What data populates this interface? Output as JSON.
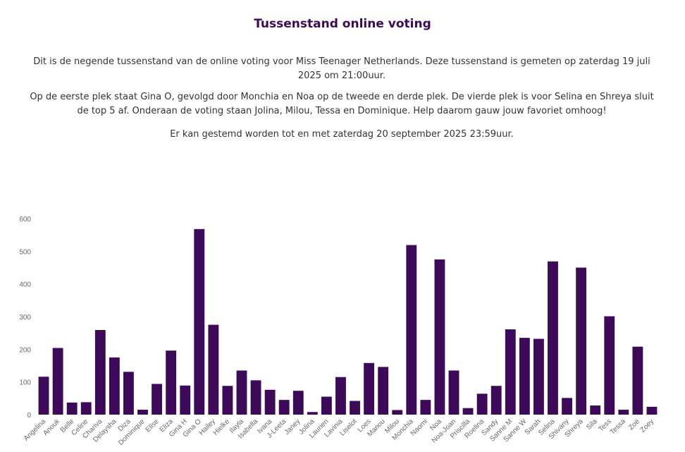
{
  "page": {
    "title": "Tussenstand online voting",
    "paragraphs": [
      "Dit is de negende tussenstand van de online voting voor Miss Teenager Netherlands. Deze tussenstand is gemeten op zaterdag 19 juli 2025 om 21:00uur.",
      "Op de eerste plek staat Gina O, gevolgd door Monchia en Noa op de tweede en derde plek. De vierde plek is voor Selina en Shreya sluit de top 5 af. Onderaan de voting staan Jolina, Milou, Tessa en Dominique. Help daarom gauw jouw favoriet omhoog!",
      "Er kan gestemd worden tot en met zaterdag 20 september 2025 23:59uur."
    ]
  },
  "colors": {
    "bar": "#3d0a5a",
    "title": "#3d0a5a"
  },
  "chart_data": {
    "type": "bar",
    "categories": [
      "Angelina",
      "Anouk",
      "Belle",
      "Celine",
      "Chariva",
      "Delaysha",
      "Diza",
      "Dominique",
      "Elise",
      "Eliza",
      "Gina H",
      "Gina O",
      "Hailey",
      "Hielke",
      "Ilayla",
      "Isabella",
      "Ivana",
      "J-Leeta",
      "Janey",
      "Jolina",
      "Laurien",
      "Lavinia",
      "Liselot",
      "Loes",
      "Manou",
      "Milou",
      "Monchia",
      "Naomi",
      "Noa",
      "Noa-Joan",
      "Priscilla",
      "Roelina",
      "Sandy",
      "Sanne M",
      "Sanne W",
      "Sarah",
      "Selina",
      "Shivany",
      "Shreya",
      "Sila",
      "Tess",
      "Tessa",
      "Zoë",
      "Zoey"
    ],
    "values": [
      116,
      204,
      37,
      38,
      259,
      175,
      131,
      15,
      94,
      196,
      89,
      568,
      275,
      88,
      135,
      105,
      76,
      45,
      73,
      8,
      55,
      115,
      42,
      158,
      146,
      14,
      519,
      45,
      475,
      135,
      20,
      64,
      88,
      261,
      235,
      232,
      469,
      51,
      450,
      28,
      301,
      15,
      208,
      24
    ],
    "ylim": [
      0,
      600
    ],
    "yticks": [
      0,
      100,
      200,
      300,
      400,
      500,
      600
    ],
    "grid": false,
    "legend": "none"
  }
}
